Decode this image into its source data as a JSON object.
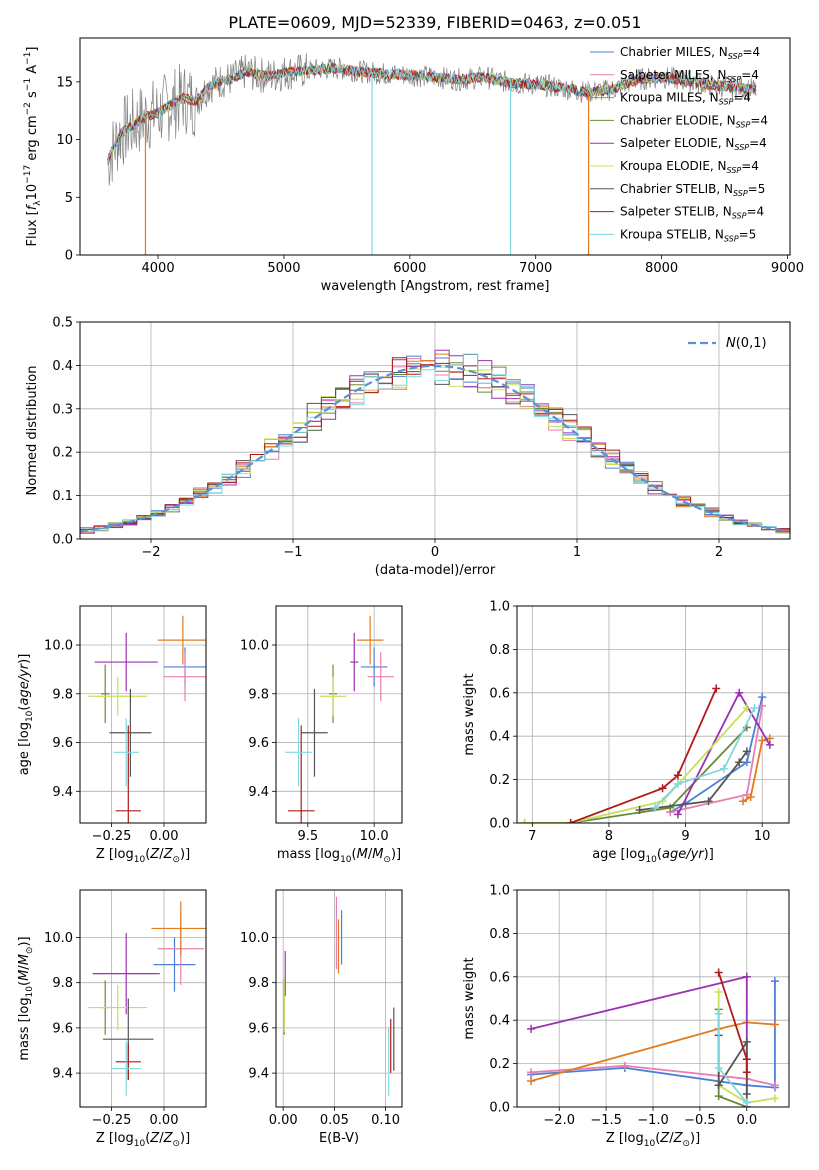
{
  "figure": {
    "title": "PLATE=0609, MJD=52339, FIBERID=0463, z=0.051"
  },
  "models": [
    {
      "name": "Chabrier MILES",
      "nssp": "4",
      "color": "#4e7fd6"
    },
    {
      "name": "Salpeter MILES",
      "nssp": "4",
      "color": "#e87fb3"
    },
    {
      "name": "Kroupa MILES",
      "nssp": "4",
      "color": "#e07b1f"
    },
    {
      "name": "Chabrier ELODIE",
      "nssp": "4",
      "color": "#6a8a3a"
    },
    {
      "name": "Salpeter ELODIE",
      "nssp": "4",
      "color": "#9b30b0"
    },
    {
      "name": "Kroupa ELODIE",
      "nssp": "4",
      "color": "#c8e05a"
    },
    {
      "name": "Chabrier STELIB",
      "nssp": "5",
      "color": "#555555"
    },
    {
      "name": "Salpeter STELIB",
      "nssp": "4",
      "color": "#b01a1a"
    },
    {
      "name": "Kroupa STELIB",
      "nssp": "5",
      "color": "#7fd8e0"
    }
  ],
  "chart_data": [
    {
      "id": "spectrum",
      "type": "line",
      "xlabel": "wavelength [Angstrom, rest frame]",
      "ylabel": "Flux [f_λ10^-17 erg cm^-2 s^-1 A^-1]",
      "xlim": [
        3380,
        9020
      ],
      "ylim": [
        0,
        18.8
      ],
      "xticks": [
        4000,
        5000,
        6000,
        7000,
        8000,
        9000
      ],
      "yticks": [
        0,
        5,
        10,
        15
      ],
      "grid": false,
      "legend": "right",
      "observed_color": "#808080",
      "x": [
        3600,
        3700,
        3800,
        3900,
        4000,
        4100,
        4200,
        4300,
        4400,
        4500,
        4600,
        4700,
        4800,
        4900,
        5000,
        5200,
        5400,
        5600,
        5800,
        6000,
        6200,
        6400,
        6600,
        6800,
        7000,
        7200,
        7400,
        7600,
        7800,
        8000,
        8200,
        8400,
        8600,
        8750
      ],
      "y": [
        8.2,
        10.5,
        11.3,
        12.0,
        12.3,
        13.0,
        13.6,
        13.3,
        14.6,
        15.1,
        15.3,
        15.9,
        15.6,
        15.5,
        15.8,
        16.0,
        16.2,
        15.9,
        15.7,
        15.6,
        15.4,
        15.2,
        15.4,
        14.9,
        14.8,
        14.5,
        14.1,
        14.3,
        15.2,
        15.4,
        15.1,
        14.7,
        14.5,
        14.3
      ],
      "dips": [
        {
          "x": 3900,
          "y": 0
        },
        {
          "x": 5700,
          "y": 0
        },
        {
          "x": 6800,
          "y": 0
        },
        {
          "x": 7420,
          "y": 0
        }
      ]
    },
    {
      "id": "residuals",
      "type": "line",
      "xlabel": "(data-model)/error",
      "ylabel": "Normed distribution",
      "xlim": [
        -2.5,
        2.5
      ],
      "ylim": [
        0,
        0.5
      ],
      "xticks": [
        -2,
        -1,
        0,
        1,
        2
      ],
      "yticks": [
        0.0,
        0.1,
        0.2,
        0.3,
        0.4,
        0.5
      ],
      "grid": true,
      "legend": "top-right",
      "reference_curve": {
        "label": "N(0,1)",
        "mu": 0,
        "sigma": 1,
        "color": "#5b8fd8"
      }
    },
    {
      "id": "age-Z",
      "type": "scatter",
      "xlabel": "Z [log10(Z/Z⊙)]",
      "ylabel": "age  [log10(age/yr)]",
      "xlim": [
        -0.4,
        0.2
      ],
      "ylim": [
        9.27,
        10.16
      ],
      "xticks": [
        -0.25,
        0.0
      ],
      "yticks": [
        9.4,
        9.6,
        9.8,
        10.0
      ],
      "grid": true,
      "points": [
        {
          "x": 0.1,
          "y": 9.91,
          "xerr": 0.1,
          "yerr": 0.08
        },
        {
          "x": 0.1,
          "y": 9.87,
          "xerr": 0.1,
          "yerr": 0.1
        },
        {
          "x": 0.09,
          "y": 10.02,
          "xerr": 0.12,
          "yerr": 0.1
        },
        {
          "x": -0.28,
          "y": 9.8,
          "xerr": 0.02,
          "yerr": 0.12
        },
        {
          "x": -0.18,
          "y": 9.93,
          "xerr": 0.15,
          "yerr": 0.12
        },
        {
          "x": -0.22,
          "y": 9.79,
          "xerr": 0.14,
          "yerr": 0.08
        },
        {
          "x": -0.16,
          "y": 9.64,
          "xerr": 0.1,
          "yerr": 0.18
        },
        {
          "x": -0.17,
          "y": 9.32,
          "xerr": 0.06,
          "yerr": 0.35
        },
        {
          "x": -0.18,
          "y": 9.56,
          "xerr": 0.06,
          "yerr": 0.14
        }
      ]
    },
    {
      "id": "age-mass",
      "type": "scatter",
      "xlabel": "mass [log10(M/M⊙)]",
      "ylabel": "",
      "xlim": [
        9.26,
        10.21
      ],
      "ylim": [
        9.27,
        10.16
      ],
      "xticks": [
        9.5,
        10.0
      ],
      "yticks": [
        9.4,
        9.6,
        9.8,
        10.0
      ],
      "grid": true,
      "points": [
        {
          "x": 10.0,
          "y": 9.91,
          "xerr": 0.1,
          "yerr": 0.08
        },
        {
          "x": 10.05,
          "y": 9.87,
          "xerr": 0.1,
          "yerr": 0.1
        },
        {
          "x": 9.97,
          "y": 10.02,
          "xerr": 0.1,
          "yerr": 0.1
        },
        {
          "x": 9.69,
          "y": 9.8,
          "xerr": 0.03,
          "yerr": 0.12
        },
        {
          "x": 9.85,
          "y": 9.93,
          "xerr": 0.03,
          "yerr": 0.12
        },
        {
          "x": 9.69,
          "y": 9.79,
          "xerr": 0.1,
          "yerr": 0.08
        },
        {
          "x": 9.55,
          "y": 9.64,
          "xerr": 0.1,
          "yerr": 0.18
        },
        {
          "x": 9.45,
          "y": 9.32,
          "xerr": 0.1,
          "yerr": 0.35
        },
        {
          "x": 9.43,
          "y": 9.56,
          "xerr": 0.1,
          "yerr": 0.14
        }
      ]
    },
    {
      "id": "weight-age",
      "type": "line",
      "xlabel": "age  [log10(age/yr)]",
      "ylabel": "mass weight",
      "xlim": [
        6.8,
        10.35
      ],
      "ylim": [
        0,
        1.0
      ],
      "xticks": [
        7,
        8,
        9,
        10
      ],
      "yticks": [
        0.0,
        0.2,
        0.4,
        0.6,
        0.8,
        1.0
      ],
      "grid": true,
      "series": [
        {
          "x": [
            8.8,
            9.0,
            9.8,
            10.0
          ],
          "y": [
            0.05,
            0.09,
            0.28,
            0.58
          ]
        },
        {
          "x": [
            8.8,
            9.8,
            10.0
          ],
          "y": [
            0.05,
            0.13,
            0.54
          ]
        },
        {
          "x": [
            9.75,
            9.85,
            10.0,
            10.1
          ],
          "y": [
            0.1,
            0.12,
            0.38,
            0.39
          ]
        },
        {
          "x": [
            6.9,
            7.5,
            8.8,
            9.8
          ],
          "y": [
            0.0,
            0.0,
            0.07,
            0.44
          ]
        },
        {
          "x": [
            8.9,
            9.7,
            10.1
          ],
          "y": [
            0.04,
            0.6,
            0.36
          ]
        },
        {
          "x": [
            6.9,
            7.5,
            8.7,
            9.8
          ],
          "y": [
            0.0,
            0.0,
            0.1,
            0.53
          ]
        },
        {
          "x": [
            8.4,
            9.3,
            9.7,
            9.8
          ],
          "y": [
            0.06,
            0.1,
            0.28,
            0.33
          ]
        },
        {
          "x": [
            7.5,
            8.7,
            8.9,
            9.4
          ],
          "y": [
            0.0,
            0.16,
            0.22,
            0.62
          ]
        },
        {
          "x": [
            8.6,
            8.9,
            9.5,
            9.9
          ],
          "y": [
            0.07,
            0.18,
            0.25,
            0.53
          ]
        }
      ]
    },
    {
      "id": "mass-Z",
      "type": "scatter",
      "xlabel": "Z [log10(Z/Z⊙)]",
      "ylabel": "mass [log10(M/M⊙)]",
      "xlim": [
        -0.4,
        0.2
      ],
      "ylim": [
        9.25,
        10.21
      ],
      "xticks": [
        -0.25,
        0.0
      ],
      "yticks": [
        9.4,
        9.6,
        9.8,
        10.0
      ],
      "grid": true,
      "points": [
        {
          "x": 0.05,
          "y": 9.88,
          "xerr": 0.1,
          "yerr": 0.12
        },
        {
          "x": 0.08,
          "y": 9.95,
          "xerr": 0.11,
          "yerr": 0.16
        },
        {
          "x": 0.08,
          "y": 10.04,
          "xerr": 0.14,
          "yerr": 0.12
        },
        {
          "x": -0.28,
          "y": 9.69,
          "xerr": 0.02,
          "yerr": 0.12
        },
        {
          "x": -0.18,
          "y": 9.84,
          "xerr": 0.16,
          "yerr": 0.18
        },
        {
          "x": -0.22,
          "y": 9.69,
          "xerr": 0.14,
          "yerr": 0.1
        },
        {
          "x": -0.17,
          "y": 9.55,
          "xerr": 0.12,
          "yerr": 0.18
        },
        {
          "x": -0.17,
          "y": 9.45,
          "xerr": 0.06,
          "yerr": 0.08
        },
        {
          "x": -0.18,
          "y": 9.42,
          "xerr": 0.07,
          "yerr": 0.12
        }
      ]
    },
    {
      "id": "mass-EBV",
      "type": "scatter",
      "xlabel": "E(B-V)",
      "ylabel": "",
      "xlim": [
        -0.007,
        0.116
      ],
      "ylim": [
        9.25,
        10.21
      ],
      "xticks": [
        0.0,
        0.05,
        0.1
      ],
      "yticks": [
        9.4,
        9.6,
        9.8,
        10.0
      ],
      "grid": true,
      "points": [
        {
          "x": 0.057,
          "y": 10.0,
          "xerr": 0,
          "yerr": 0.12
        },
        {
          "x": 0.052,
          "y": 10.02,
          "xerr": 0,
          "yerr": 0.16
        },
        {
          "x": 0.054,
          "y": 9.96,
          "xerr": 0,
          "yerr": 0.12
        },
        {
          "x": 0.001,
          "y": 9.69,
          "xerr": 0,
          "yerr": 0.12
        },
        {
          "x": 0.002,
          "y": 9.84,
          "xerr": 0,
          "yerr": 0.1
        },
        {
          "x": 0.001,
          "y": 9.7,
          "xerr": 0,
          "yerr": 0.12
        },
        {
          "x": 0.108,
          "y": 9.55,
          "xerr": 0,
          "yerr": 0.14
        },
        {
          "x": 0.105,
          "y": 9.52,
          "xerr": 0,
          "yerr": 0.12
        },
        {
          "x": 0.103,
          "y": 9.45,
          "xerr": 0,
          "yerr": 0.15
        }
      ]
    },
    {
      "id": "weight-Z",
      "type": "line",
      "xlabel": "Z [log10(Z/Z⊙)]",
      "ylabel": "mass weight",
      "xlim": [
        -2.45,
        0.45
      ],
      "ylim": [
        0,
        1.0
      ],
      "xticks": [
        -2.0,
        -1.5,
        -1.0,
        -0.5,
        0.0
      ],
      "yticks": [
        0.0,
        0.2,
        0.4,
        0.6,
        0.8,
        1.0
      ],
      "grid": true,
      "series": [
        {
          "x": [
            -2.3,
            -1.3,
            0.0,
            0.3,
            0.3
          ],
          "y": [
            0.15,
            0.18,
            0.1,
            0.09,
            0.58
          ]
        },
        {
          "x": [
            -2.3,
            -1.3,
            0.0,
            0.3
          ],
          "y": [
            0.16,
            0.19,
            0.13,
            0.1
          ]
        },
        {
          "x": [
            -2.3,
            -0.3,
            0.0,
            0.3
          ],
          "y": [
            0.12,
            0.36,
            0.39,
            0.38
          ]
        },
        {
          "x": [
            -0.3,
            -0.3,
            0.0
          ],
          "y": [
            0.45,
            0.05,
            0.0
          ]
        },
        {
          "x": [
            -2.3,
            0.0,
            0.0
          ],
          "y": [
            0.36,
            0.6,
            0.0
          ]
        },
        {
          "x": [
            -0.3,
            -0.3,
            0.0,
            0.3
          ],
          "y": [
            0.53,
            0.1,
            0.02,
            0.04
          ]
        },
        {
          "x": [
            -0.3,
            -0.3,
            0.0,
            0.0
          ],
          "y": [
            0.33,
            0.1,
            0.3,
            0.06
          ]
        },
        {
          "x": [
            -0.3,
            0.0,
            0.0
          ],
          "y": [
            0.62,
            0.22,
            0.16
          ]
        },
        {
          "x": [
            -0.3,
            -0.3,
            0.0
          ],
          "y": [
            0.43,
            0.18,
            0.02
          ]
        }
      ]
    }
  ]
}
